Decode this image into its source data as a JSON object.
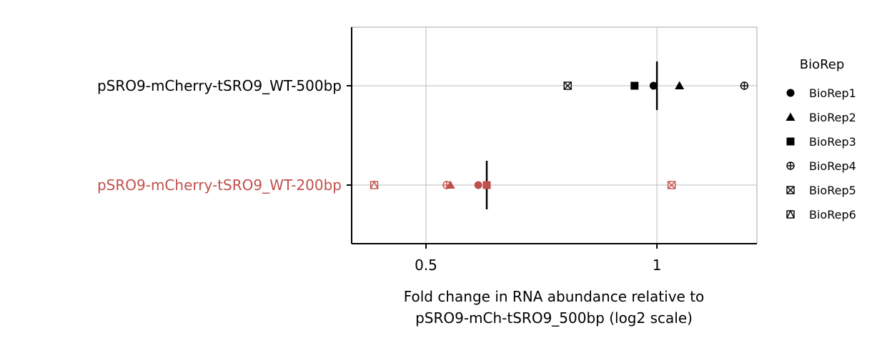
{
  "chart_data": {
    "type": "scatter",
    "orientation": "horizontal",
    "x_scale": "log2",
    "xlim": [
      0.4,
      1.35
    ],
    "xticks": [
      0.5,
      1
    ],
    "xtick_labels": [
      "0.5",
      "1"
    ],
    "xlabel_lines": [
      "Fold change in RNA abundance relative to",
      "pSRO9-mCh-tSRO9_500bp (log2 scale)"
    ],
    "grid": true,
    "categories": [
      {
        "label": "pSRO9-mCherry-tSRO9_WT-500bp",
        "color": "#000000",
        "mean": 1.0
      },
      {
        "label": "pSRO9-mCherry-tSRO9_WT-200bp",
        "color": "#c0504d",
        "mean": 0.6
      }
    ],
    "legend_title": "BioRep",
    "legend_position": "right",
    "series": [
      {
        "name": "BioRep1",
        "shape": "circle",
        "values": [
          0.99,
          0.585
        ]
      },
      {
        "name": "BioRep2",
        "shape": "triangle",
        "values": [
          1.07,
          0.538
        ]
      },
      {
        "name": "BioRep3",
        "shape": "square",
        "values": [
          0.935,
          0.6
        ]
      },
      {
        "name": "BioRep4",
        "shape": "circle-plus",
        "values": [
          1.3,
          0.532
        ]
      },
      {
        "name": "BioRep5",
        "shape": "square-cross",
        "values": [
          0.765,
          1.045
        ]
      },
      {
        "name": "BioRep6",
        "shape": "square-triangle",
        "values": [
          null,
          0.428
        ]
      }
    ]
  }
}
